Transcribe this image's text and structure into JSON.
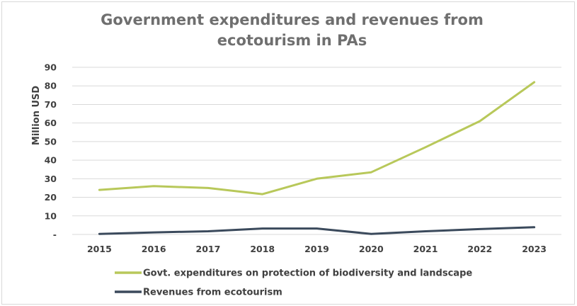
{
  "chart_data": {
    "type": "line",
    "title_line1": "Government expenditures and revenues from",
    "title_line2": "ecotourism in PAs",
    "ylabel": "Million USD",
    "xlabel": "",
    "ylim": [
      0,
      90
    ],
    "y_ticks": [
      "-",
      "10",
      "20",
      "30",
      "40",
      "50",
      "60",
      "70",
      "80",
      "90"
    ],
    "categories": [
      "2015",
      "2016",
      "2017",
      "2018",
      "2019",
      "2020",
      "2021",
      "2022",
      "2023"
    ],
    "grid": true,
    "legend_position": "bottom",
    "series": [
      {
        "name": "Govt. expenditures on protection of biodiversity and landscape",
        "color": "#b8c85a",
        "values": [
          24,
          26,
          25,
          21.7,
          30,
          33.5,
          47,
          61,
          82
        ]
      },
      {
        "name": "Revenues from ecotourism",
        "color": "#3b4a5c",
        "values": [
          0.3,
          1.1,
          1.7,
          3.2,
          3.2,
          0.3,
          1.7,
          2.9,
          3.9
        ]
      }
    ]
  }
}
